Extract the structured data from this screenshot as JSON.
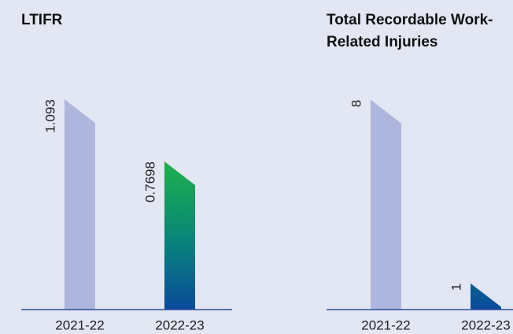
{
  "charts": [
    {
      "chart_data": {
        "type": "bar",
        "title": "LTIFR",
        "categories": [
          "2021-22",
          "2022-23"
        ],
        "values": [
          1.093,
          0.7698
        ],
        "colors": [
          "#aeb6dd",
          "#1fb34a"
        ],
        "ylim": [
          0,
          1.2
        ]
      }
    },
    {
      "chart_data": {
        "type": "bar",
        "title": "Total Recordable Work-Related Injuries",
        "categories": [
          "2021-22",
          "2022-23"
        ],
        "values": [
          8,
          1
        ],
        "colors": [
          "#aeb6dd",
          "#1fb34a"
        ],
        "ylim": [
          0,
          8.8
        ]
      }
    }
  ]
}
